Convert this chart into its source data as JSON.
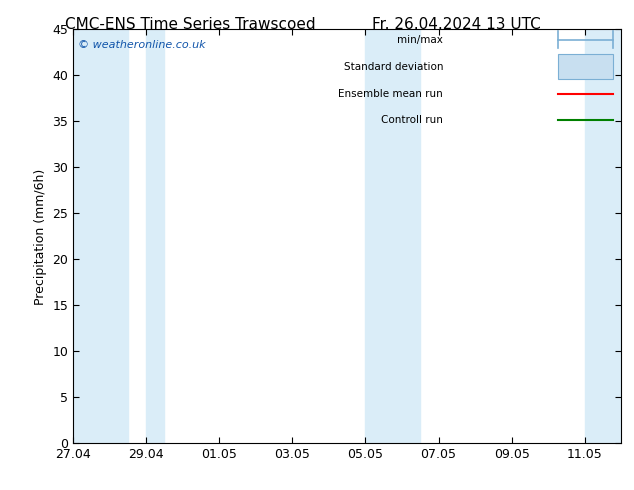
{
  "title": "CMC-ENS Time Series Trawscoed      Fr. 26.04.2024 13 UTC",
  "ylabel": "Precipitation (mm/6h)",
  "ylim": [
    0,
    45
  ],
  "yticks": [
    0,
    5,
    10,
    15,
    20,
    25,
    30,
    35,
    40,
    45
  ],
  "xtick_labels": [
    "27.04",
    "29.04",
    "01.05",
    "03.05",
    "05.05",
    "07.05",
    "09.05",
    "11.05"
  ],
  "xtick_positions": [
    0,
    2,
    4,
    6,
    8,
    10,
    12,
    14
  ],
  "xlim": [
    0,
    15
  ],
  "watermark": "© weatheronline.co.uk",
  "background_color": "#ffffff",
  "plot_bg_color": "#ffffff",
  "band_color": "#daedf8",
  "legend_items": [
    "min/max",
    "Standard deviation",
    "Ensemble mean run",
    "Controll run"
  ],
  "minmax_color": "#7bafd4",
  "stdev_color": "#c8dff0",
  "ensemble_color": "#ff0000",
  "control_color": "#008000",
  "title_fontsize": 11,
  "axis_fontsize": 9,
  "tick_fontsize": 9,
  "watermark_color": "#1155aa",
  "band_pairs": [
    [
      0,
      1.5
    ],
    [
      2,
      2.5
    ],
    [
      8,
      9.5
    ],
    [
      14,
      15
    ]
  ]
}
